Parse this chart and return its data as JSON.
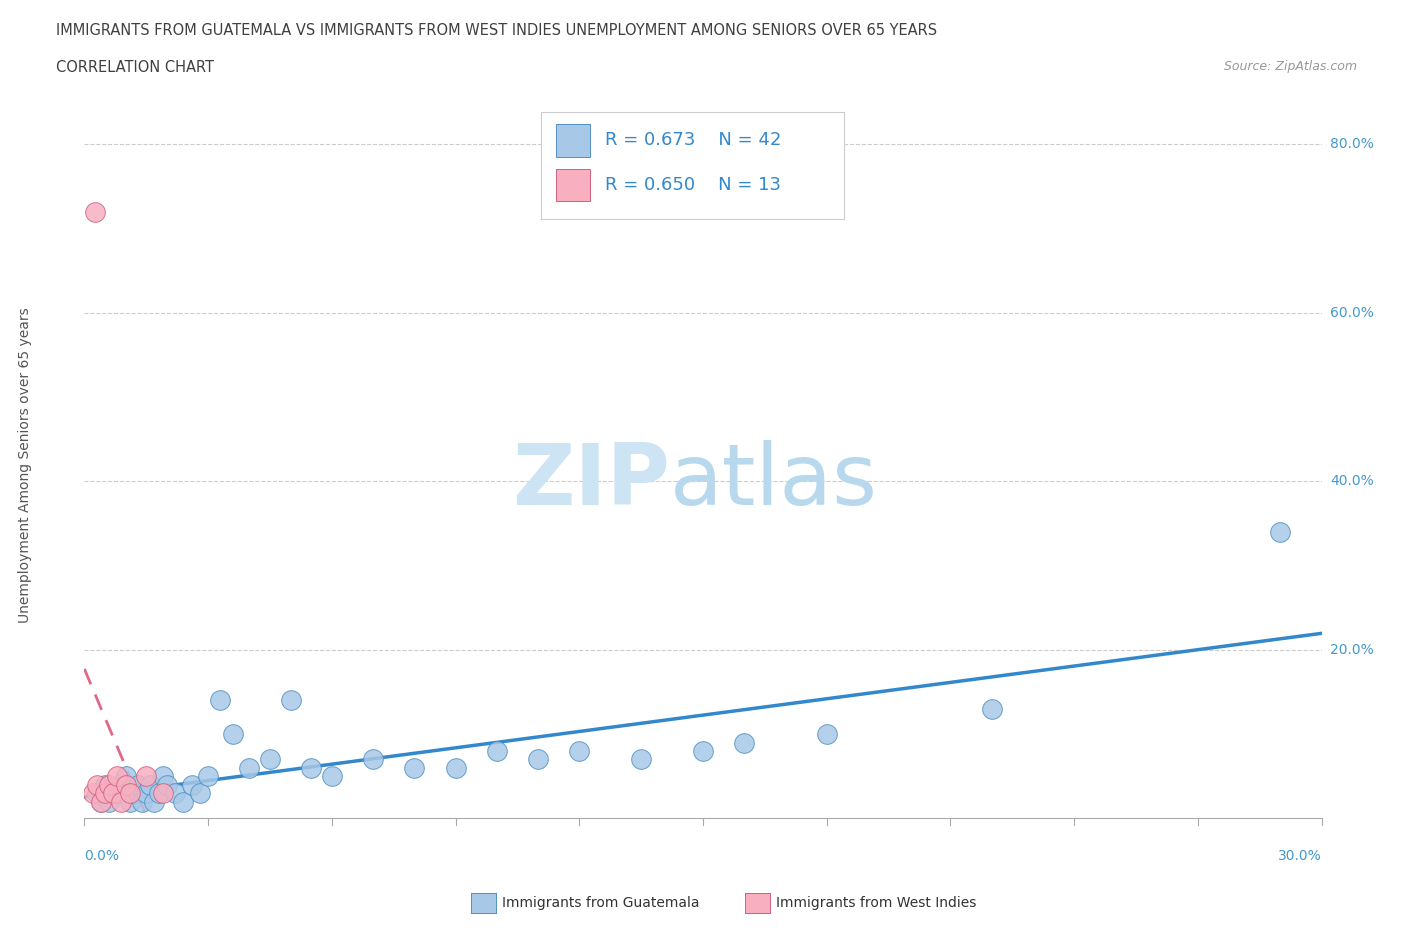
{
  "title_line1": "IMMIGRANTS FROM GUATEMALA VS IMMIGRANTS FROM WEST INDIES UNEMPLOYMENT AMONG SENIORS OVER 65 YEARS",
  "title_line2": "CORRELATION CHART",
  "source_text": "Source: ZipAtlas.com",
  "xlabel_bottom_left": "0.0%",
  "xlabel_bottom_right": "30.0%",
  "ylabel": "Unemployment Among Seniors over 65 years",
  "ytick_labels": [
    "20.0%",
    "40.0%",
    "60.0%",
    "80.0%"
  ],
  "ytick_values": [
    20,
    40,
    60,
    80
  ],
  "xlim": [
    0,
    30
  ],
  "ylim": [
    0,
    85
  ],
  "R_guatemala": 0.673,
  "N_guatemala": 42,
  "R_west_indies": 0.65,
  "N_west_indies": 13,
  "color_guatemala_fill": "#a8c8e8",
  "color_guatemala_edge": "#5090c0",
  "color_west_indies_fill": "#f8b0c0",
  "color_west_indies_edge": "#d06080",
  "trendline_guatemala_color": "#3388cc",
  "trendline_west_indies_color": "#e06888",
  "background_color": "#ffffff",
  "title_color": "#404040",
  "axis_tick_color": "#4499cc",
  "legend_text_color": "#3388cc",
  "source_color": "#999999",
  "ylabel_color": "#555555",
  "grid_color": "#cccccc",
  "tick_color": "#aaaaaa",
  "watermark_zip_color": "#cce4f4",
  "watermark_atlas_color": "#b8d8ee",
  "guatemala_x": [
    0.3,
    0.4,
    0.5,
    0.6,
    0.7,
    0.8,
    0.9,
    1.0,
    1.1,
    1.2,
    1.3,
    1.4,
    1.5,
    1.6,
    1.7,
    1.8,
    1.9,
    2.0,
    2.2,
    2.4,
    2.6,
    2.8,
    3.0,
    3.3,
    3.6,
    4.0,
    4.5,
    5.0,
    5.5,
    6.0,
    7.0,
    8.0,
    9.0,
    10.0,
    11.0,
    12.0,
    13.5,
    15.0,
    16.0,
    18.0,
    22.0,
    29.0
  ],
  "guatemala_y": [
    3,
    2,
    4,
    2,
    3,
    3,
    4,
    5,
    2,
    3,
    4,
    2,
    3,
    4,
    2,
    3,
    5,
    4,
    3,
    2,
    4,
    3,
    5,
    14,
    10,
    6,
    7,
    14,
    6,
    5,
    7,
    6,
    6,
    8,
    7,
    8,
    7,
    8,
    9,
    10,
    13,
    34
  ],
  "west_indies_x": [
    0.2,
    0.3,
    0.4,
    0.5,
    0.6,
    0.7,
    0.8,
    0.9,
    1.0,
    1.1,
    1.5,
    1.9,
    0.25
  ],
  "west_indies_y": [
    3,
    4,
    2,
    3,
    4,
    3,
    5,
    2,
    4,
    3,
    5,
    3,
    72
  ]
}
